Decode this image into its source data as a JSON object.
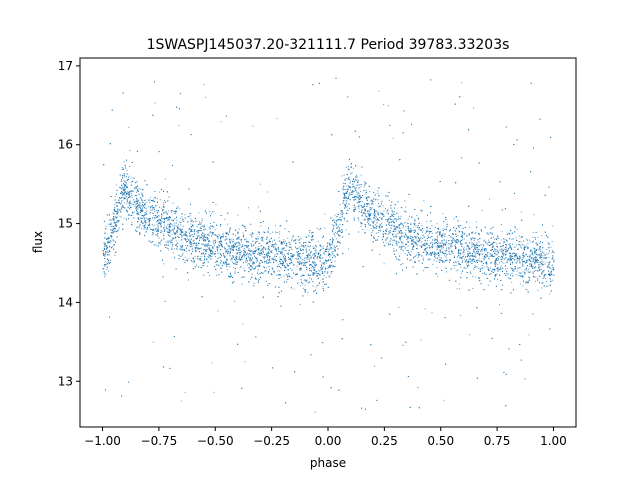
{
  "chart_data": {
    "type": "scatter",
    "title": "1SWASPJ145037.20-321111.7 Period 39783.33203s",
    "xlabel": "phase",
    "ylabel": "flux",
    "xlim": [
      -1.1,
      1.1
    ],
    "ylim": [
      12.42,
      17.1
    ],
    "x_ticks": [
      -1.0,
      -0.75,
      -0.5,
      -0.25,
      0.0,
      0.25,
      0.5,
      0.75,
      1.0
    ],
    "x_tick_labels": [
      "−1.00",
      "−0.75",
      "−0.50",
      "−0.25",
      "0.00",
      "0.25",
      "0.50",
      "0.75",
      "1.00"
    ],
    "y_ticks": [
      13,
      14,
      15,
      16,
      17
    ],
    "y_tick_labels": [
      "13",
      "14",
      "15",
      "16",
      "17"
    ],
    "grid": false,
    "series": [
      {
        "color": "#1f77b4",
        "trend": {
          "phase": [
            0.0,
            0.02,
            0.05,
            0.08,
            0.1,
            0.12,
            0.15,
            0.2,
            0.3,
            0.4,
            0.5,
            0.6,
            0.7,
            0.8,
            0.9,
            1.0
          ],
          "flux": [
            14.5,
            14.7,
            15.0,
            15.35,
            15.45,
            15.4,
            15.25,
            15.1,
            14.95,
            14.8,
            14.7,
            14.65,
            14.6,
            14.58,
            14.55,
            14.5
          ]
        },
        "core_spread": 0.17,
        "outlier_range": [
          12.6,
          16.9
        ]
      }
    ]
  }
}
